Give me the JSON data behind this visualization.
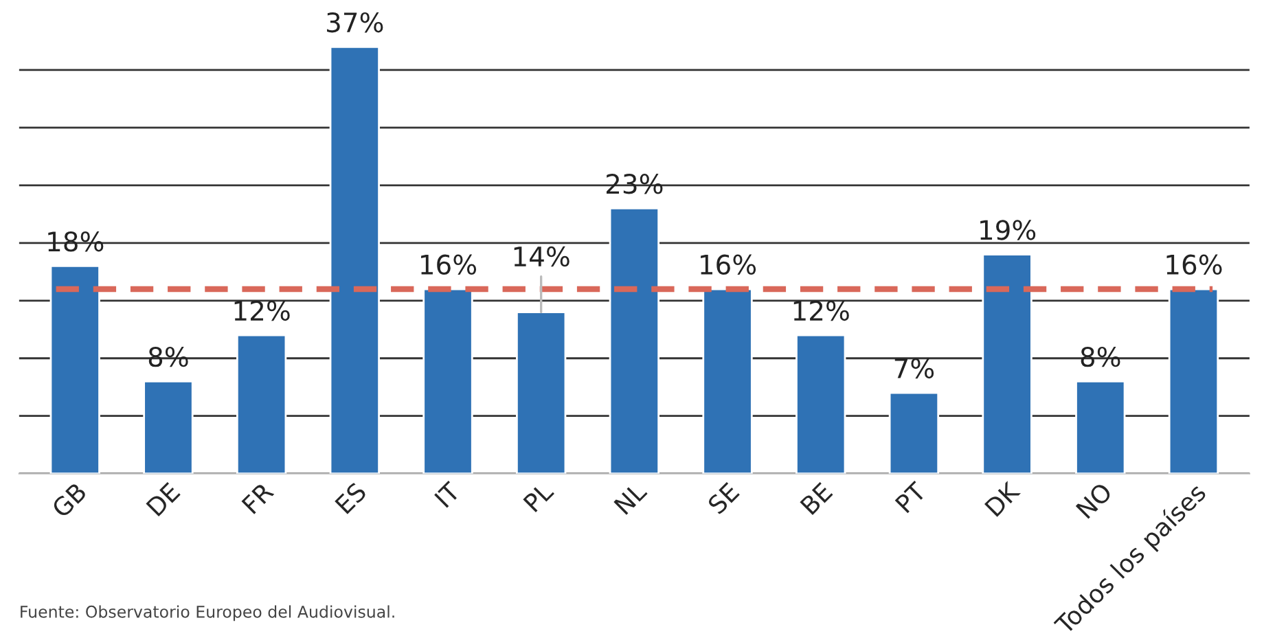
{
  "chart_data": {
    "type": "bar",
    "categories": [
      "GB",
      "DE",
      "FR",
      "ES",
      "IT",
      "PL",
      "NL",
      "SE",
      "BE",
      "PT",
      "DK",
      "NO",
      "Todos los países"
    ],
    "values": [
      18,
      8,
      12,
      37,
      16,
      14,
      23,
      16,
      12,
      7,
      19,
      8,
      16
    ],
    "color": "#2f72b5",
    "value_labels": [
      "18%",
      "8%",
      "12%",
      "37%",
      "16%",
      "14%",
      "23%",
      "16%",
      "12%",
      "7%",
      "19%",
      "8%",
      "16%"
    ],
    "grid": "y",
    "tick_labels": "x",
    "ref_lines": [
      {
        "axis": "y",
        "value": 16,
        "color": "#d9685a",
        "line_style": "dashed"
      }
    ],
    "annotations": [
      "Fuente: Observatorio Europeo del Audiovisual."
    ]
  }
}
